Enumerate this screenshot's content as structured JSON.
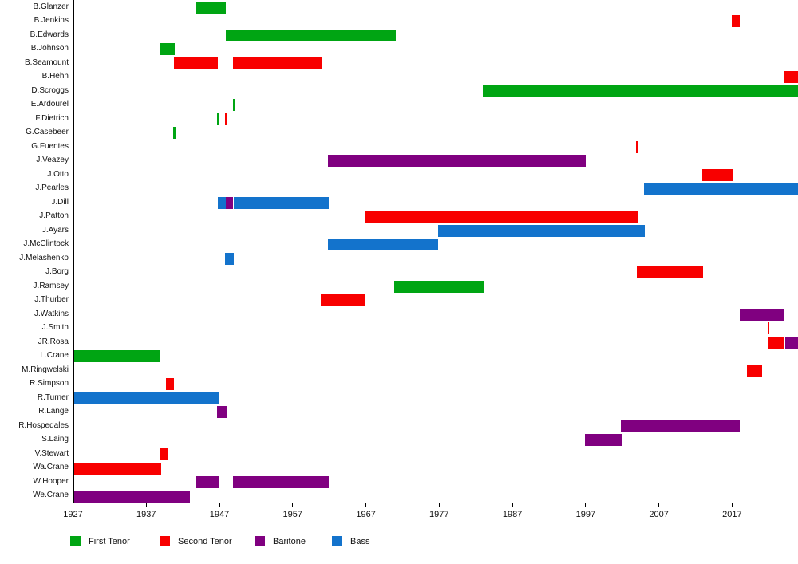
{
  "chart_data": {
    "type": "gantt",
    "title": "",
    "xlabel": "",
    "ylabel": "",
    "unit": "year",
    "xlim": [
      1927,
      2026
    ],
    "x_ticks": [
      1927,
      1937,
      1947,
      1957,
      1967,
      1977,
      1987,
      1997,
      2007,
      2017
    ],
    "grid": false,
    "legend_position": "bottom",
    "parts": {
      "first_tenor": {
        "label": "First Tenor",
        "color": "#00a513"
      },
      "second_tenor": {
        "label": "Second Tenor",
        "color": "#f80000"
      },
      "baritone": {
        "label": "Baritone",
        "color": "#800080"
      },
      "bass": {
        "label": "Bass",
        "color": "#1373cc"
      }
    },
    "legend_order": [
      "first_tenor",
      "second_tenor",
      "baritone",
      "bass"
    ],
    "members": [
      {
        "name": "B.Glanzer",
        "segments": [
          {
            "part": "first_tenor",
            "start": 1943.8,
            "end": 1947.9
          }
        ]
      },
      {
        "name": "B.Jenkins",
        "segments": [
          {
            "part": "second_tenor",
            "start": 2017.0,
            "end": 2018.1
          }
        ]
      },
      {
        "name": "B.Edwards",
        "segments": [
          {
            "part": "first_tenor",
            "start": 1947.9,
            "end": 1971.1
          }
        ]
      },
      {
        "name": "B.Johnson",
        "segments": [
          {
            "part": "first_tenor",
            "start": 1938.8,
            "end": 1940.9
          }
        ]
      },
      {
        "name": "B.Seamount",
        "segments": [
          {
            "part": "second_tenor",
            "start": 1940.8,
            "end": 1946.8
          },
          {
            "part": "second_tenor",
            "start": 1948.8,
            "end": 1960.9
          }
        ]
      },
      {
        "name": "B.Hehn",
        "segments": [
          {
            "part": "second_tenor",
            "start": 2024.0,
            "end": 2026.0
          }
        ]
      },
      {
        "name": "D.Scroggs",
        "segments": [
          {
            "part": "first_tenor",
            "start": 1982.9,
            "end": 2026.0
          }
        ]
      },
      {
        "name": "E.Ardourel",
        "segments": [
          {
            "part": "first_tenor",
            "start": 1948.8,
            "end": 1949.1
          }
        ]
      },
      {
        "name": "F.Dietrich",
        "segments": [
          {
            "part": "first_tenor",
            "start": 1946.7,
            "end": 1947.0
          },
          {
            "part": "second_tenor",
            "start": 1947.8,
            "end": 1948.1
          }
        ]
      },
      {
        "name": "G.Casebeer",
        "segments": [
          {
            "part": "first_tenor",
            "start": 1940.7,
            "end": 1941.0
          }
        ]
      },
      {
        "name": "G.Fuentes",
        "segments": [
          {
            "part": "second_tenor",
            "start": 2003.9,
            "end": 2004.1
          }
        ]
      },
      {
        "name": "J.Veazey",
        "segments": [
          {
            "part": "baritone",
            "start": 1961.8,
            "end": 1997.0
          }
        ]
      },
      {
        "name": "J.Otto",
        "segments": [
          {
            "part": "second_tenor",
            "start": 2012.9,
            "end": 2017.1
          }
        ]
      },
      {
        "name": "J.Pearles",
        "segments": [
          {
            "part": "bass",
            "start": 2005.0,
            "end": 2026.0
          }
        ]
      },
      {
        "name": "J.Dill",
        "segments": [
          {
            "part": "bass",
            "start": 1946.8,
            "end": 1947.9
          },
          {
            "part": "baritone",
            "start": 1947.9,
            "end": 1948.9
          },
          {
            "part": "bass",
            "start": 1948.9,
            "end": 1961.9
          }
        ]
      },
      {
        "name": "J.Patton",
        "segments": [
          {
            "part": "second_tenor",
            "start": 1966.8,
            "end": 2004.1
          }
        ]
      },
      {
        "name": "J.Ayars",
        "segments": [
          {
            "part": "bass",
            "start": 1976.9,
            "end": 2005.1
          }
        ]
      },
      {
        "name": "J.McClintock",
        "segments": [
          {
            "part": "bass",
            "start": 1961.8,
            "end": 1976.9
          }
        ]
      },
      {
        "name": "J.Melashenko",
        "segments": [
          {
            "part": "bass",
            "start": 1947.7,
            "end": 1948.9
          }
        ]
      },
      {
        "name": "J.Borg",
        "segments": [
          {
            "part": "second_tenor",
            "start": 2004.0,
            "end": 2013.0
          }
        ]
      },
      {
        "name": "J.Ramsey",
        "segments": [
          {
            "part": "first_tenor",
            "start": 1970.9,
            "end": 1983.1
          }
        ]
      },
      {
        "name": "J.Thurber",
        "segments": [
          {
            "part": "second_tenor",
            "start": 1960.8,
            "end": 1966.9
          }
        ]
      },
      {
        "name": "J.Watkins",
        "segments": [
          {
            "part": "baritone",
            "start": 2018.0,
            "end": 2024.2
          }
        ]
      },
      {
        "name": "J.Smith",
        "segments": [
          {
            "part": "second_tenor",
            "start": 2021.9,
            "end": 2022.1
          }
        ]
      },
      {
        "name": "JR.Rosa",
        "segments": [
          {
            "part": "second_tenor",
            "start": 2022.0,
            "end": 2024.1
          },
          {
            "part": "baritone",
            "start": 2024.2,
            "end": 2026.0
          }
        ]
      },
      {
        "name": "L.Crane",
        "segments": [
          {
            "part": "first_tenor",
            "start": 1927.0,
            "end": 1938.9
          }
        ]
      },
      {
        "name": "M.Ringwelski",
        "segments": [
          {
            "part": "second_tenor",
            "start": 2019.0,
            "end": 2021.1
          }
        ]
      },
      {
        "name": "R.Simpson",
        "segments": [
          {
            "part": "second_tenor",
            "start": 1939.7,
            "end": 1940.8
          }
        ]
      },
      {
        "name": "R.Turner",
        "segments": [
          {
            "part": "bass",
            "start": 1927.0,
            "end": 1946.9
          }
        ]
      },
      {
        "name": "R.Lange",
        "segments": [
          {
            "part": "baritone",
            "start": 1946.7,
            "end": 1948.0
          }
        ]
      },
      {
        "name": "R.Hospedales",
        "segments": [
          {
            "part": "baritone",
            "start": 2001.8,
            "end": 2018.1
          }
        ]
      },
      {
        "name": "S.Laing",
        "segments": [
          {
            "part": "baritone",
            "start": 1996.9,
            "end": 2002.0
          }
        ]
      },
      {
        "name": "V.Stewart",
        "segments": [
          {
            "part": "second_tenor",
            "start": 1938.8,
            "end": 1939.9
          }
        ]
      },
      {
        "name": "Wa.Crane",
        "segments": [
          {
            "part": "second_tenor",
            "start": 1927.0,
            "end": 1939.0
          }
        ]
      },
      {
        "name": "W.Hooper",
        "segments": [
          {
            "part": "baritone",
            "start": 1943.7,
            "end": 1946.9
          },
          {
            "part": "baritone",
            "start": 1948.8,
            "end": 1961.9
          }
        ]
      },
      {
        "name": "We.Crane",
        "segments": [
          {
            "part": "baritone",
            "start": 1927.0,
            "end": 1943.0
          }
        ]
      }
    ]
  }
}
